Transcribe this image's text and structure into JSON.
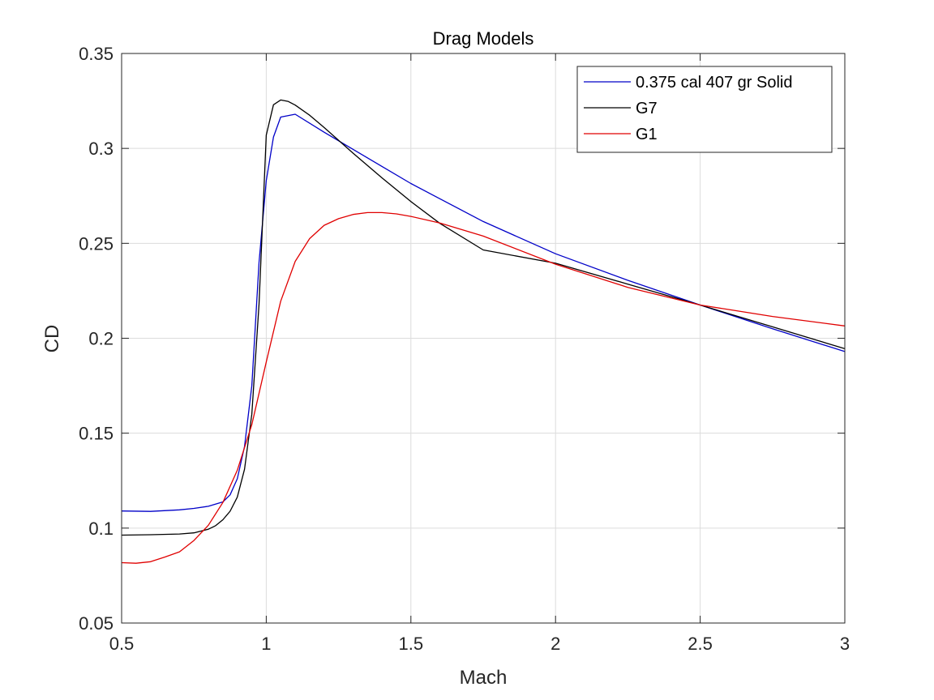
{
  "chart_data": {
    "type": "line",
    "title": "Drag Models",
    "xlabel": "Mach",
    "ylabel": "CD",
    "xlim": [
      0.5,
      3
    ],
    "ylim": [
      0.05,
      0.35
    ],
    "grid": true,
    "legend_position": "top-right",
    "x_ticks": [
      0.5,
      1,
      1.5,
      2,
      2.5,
      3
    ],
    "x_tick_labels": [
      "0.5",
      "1",
      "1.5",
      "2",
      "2.5",
      "3"
    ],
    "y_ticks": [
      0.05,
      0.1,
      0.15,
      0.2,
      0.25,
      0.3,
      0.35
    ],
    "y_tick_labels": [
      "0.05",
      "0.1",
      "0.15",
      "0.2",
      "0.25",
      "0.3",
      "0.35"
    ],
    "series": [
      {
        "name": "0.375 cal 407 gr Solid",
        "color": "#0000c8",
        "x": [
          0.5,
          0.6,
          0.7,
          0.75,
          0.8,
          0.85,
          0.875,
          0.9,
          0.925,
          0.95,
          0.975,
          1.0,
          1.025,
          1.05,
          1.1,
          1.2,
          1.3,
          1.4,
          1.5,
          1.6,
          1.75,
          2.0,
          2.25,
          2.5,
          2.75,
          3.0
        ],
        "y": [
          0.109,
          0.1088,
          0.1096,
          0.1104,
          0.1115,
          0.1138,
          0.1175,
          0.126,
          0.143,
          0.175,
          0.24,
          0.283,
          0.306,
          0.3165,
          0.318,
          0.3085,
          0.2995,
          0.2905,
          0.2815,
          0.2735,
          0.2615,
          0.2445,
          0.2305,
          0.2175,
          0.205,
          0.193
        ]
      },
      {
        "name": "G7",
        "color": "#000000",
        "x": [
          0.5,
          0.6,
          0.7,
          0.75,
          0.8,
          0.825,
          0.85,
          0.875,
          0.9,
          0.925,
          0.95,
          0.975,
          1.0,
          1.025,
          1.05,
          1.075,
          1.1,
          1.15,
          1.2,
          1.3,
          1.4,
          1.5,
          1.6,
          1.75,
          2.0,
          2.25,
          2.5,
          2.75,
          3.0
        ],
        "y": [
          0.0963,
          0.0965,
          0.0969,
          0.0975,
          0.0994,
          0.1013,
          0.1044,
          0.1089,
          0.1163,
          0.131,
          0.16,
          0.218,
          0.307,
          0.323,
          0.3255,
          0.3248,
          0.3228,
          0.3175,
          0.311,
          0.2975,
          0.2845,
          0.272,
          0.2605,
          0.2465,
          0.2395,
          0.2285,
          0.2175,
          0.206,
          0.1945
        ]
      },
      {
        "name": "G1",
        "color": "#e00000",
        "x": [
          0.5,
          0.55,
          0.6,
          0.65,
          0.7,
          0.75,
          0.8,
          0.85,
          0.9,
          0.95,
          1.0,
          1.05,
          1.1,
          1.15,
          1.2,
          1.25,
          1.3,
          1.35,
          1.4,
          1.45,
          1.5,
          1.6,
          1.75,
          2.0,
          2.25,
          2.5,
          2.75,
          3.0
        ],
        "y": [
          0.0818,
          0.0815,
          0.0823,
          0.0848,
          0.0875,
          0.0935,
          0.1015,
          0.1135,
          0.1305,
          0.1545,
          0.1875,
          0.2195,
          0.2405,
          0.2525,
          0.2595,
          0.263,
          0.2652,
          0.2662,
          0.2662,
          0.2655,
          0.2642,
          0.2607,
          0.2538,
          0.239,
          0.2268,
          0.2175,
          0.2115,
          0.2065
        ]
      }
    ]
  }
}
